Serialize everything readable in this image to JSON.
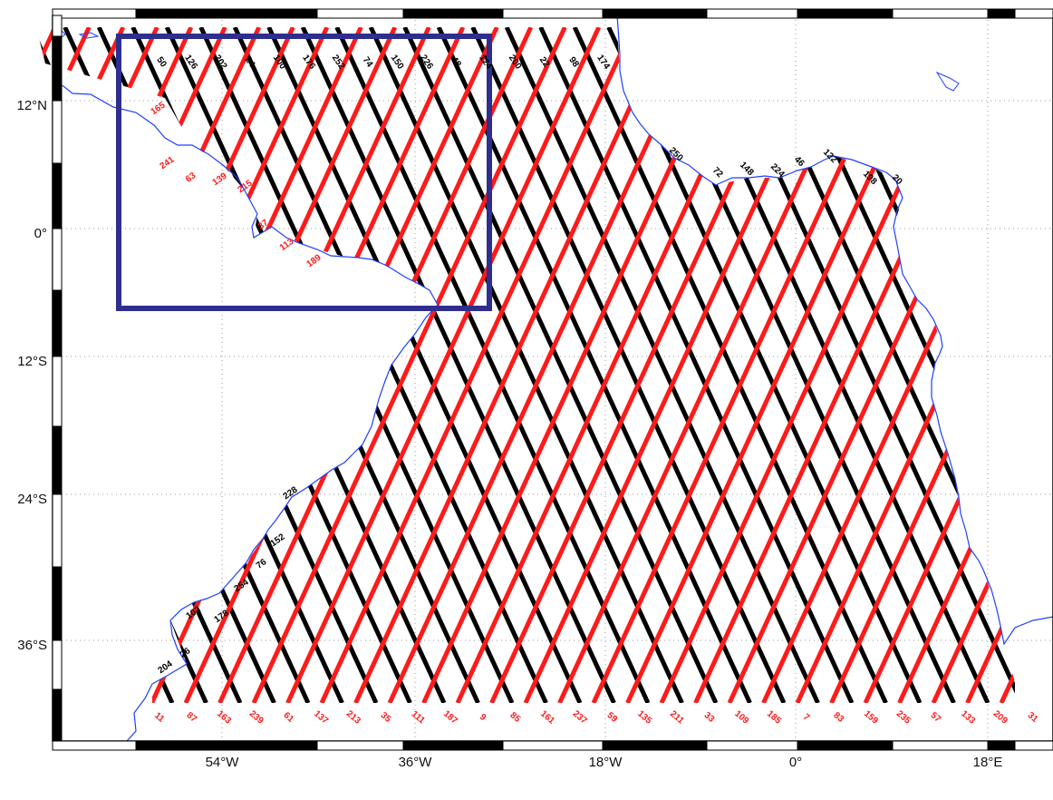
{
  "map": {
    "colors": {
      "ascending_track": "#ff1a1a",
      "descending_track": "#000000",
      "coastline": "#1f3fff",
      "inset_box": "#2e2e8f",
      "grid": "#9a9a9a",
      "frame": "#000000"
    },
    "grid": "dotted",
    "lon_ticks": [
      "54°W",
      "36°W",
      "18°W",
      "0°",
      "18°E"
    ],
    "lat_ticks": [
      "12°N",
      "0°",
      "12°S",
      "24°S",
      "36°S"
    ],
    "top_track_labels": [
      "50",
      "126",
      "202",
      "24",
      "100",
      "176",
      "252",
      "74",
      "150",
      "226",
      "48",
      "124",
      "200",
      "22",
      "98",
      "174"
    ],
    "africa_track_labels": [
      "250",
      "72",
      "148",
      "224",
      "46",
      "122",
      "198",
      "20"
    ],
    "west_coast_black_labels": [
      "228",
      "152",
      "76",
      "254",
      "102",
      "178",
      "26",
      "204"
    ],
    "west_coast_red_labels": [
      "165",
      "241",
      "63",
      "139",
      "215",
      "37",
      "113",
      "189"
    ],
    "bottom_track_labels": [
      "11",
      "87",
      "163",
      "239",
      "61",
      "137",
      "213",
      "35",
      "111",
      "187",
      "9",
      "85",
      "161",
      "237",
      "59",
      "135",
      "211",
      "33",
      "109",
      "185",
      "7",
      "83",
      "159",
      "235",
      "57",
      "133",
      "209",
      "31"
    ]
  }
}
